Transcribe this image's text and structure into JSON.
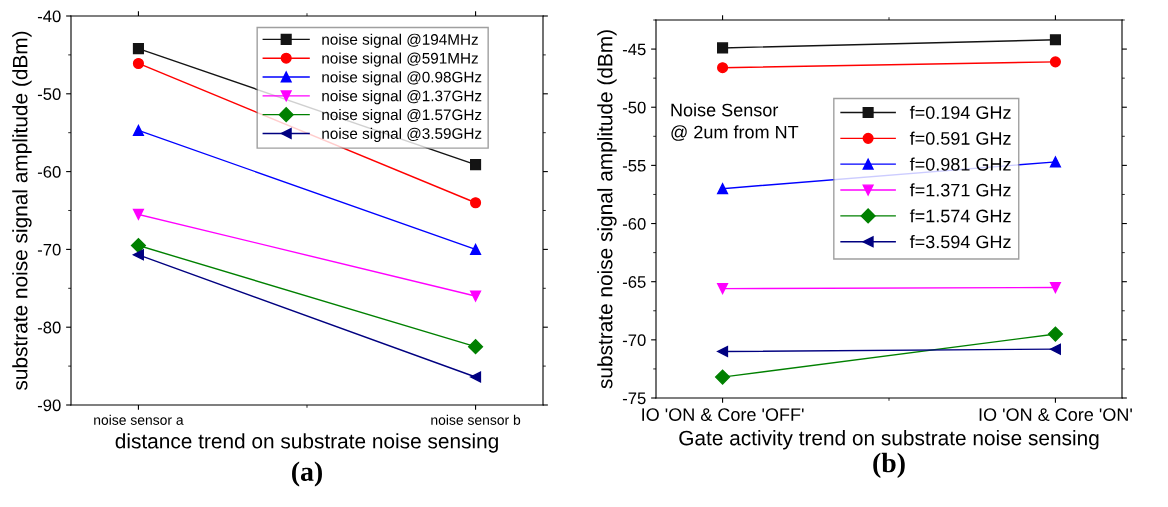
{
  "chart_data": [
    {
      "type": "line",
      "xlabel": "distance trend on substrate noise sensing",
      "ylabel": "substrate noise signal amplitude (dBm)",
      "categories": [
        "noise sensor a",
        "noise sensor b"
      ],
      "ylim": [
        -90,
        -40
      ],
      "yticks": [
        -90,
        -80,
        -70,
        -60,
        -50,
        -40
      ],
      "legend": "top right",
      "annotations": [
        "(a)"
      ],
      "series": [
        {
          "name": "noise signal @194MHz",
          "color": "#141414",
          "marker": "square",
          "values": [
            -44.2,
            -59.1
          ]
        },
        {
          "name": "noise signal @591MHz",
          "color": "#ff0000",
          "marker": "circle",
          "values": [
            -46.1,
            -64.0
          ]
        },
        {
          "name": "noise signal @0.98GHz",
          "color": "#0000ff",
          "marker": "triangle",
          "values": [
            -54.7,
            -70.0
          ]
        },
        {
          "name": "noise signal @1.37GHz",
          "color": "#ff00ff",
          "marker": "triangle_down",
          "values": [
            -65.5,
            -76.0
          ]
        },
        {
          "name": "noise signal @1.57GHz",
          "color": "#008000",
          "marker": "diamond",
          "values": [
            -69.5,
            -82.5
          ]
        },
        {
          "name": "noise signal @3.59GHz",
          "color": "#000080",
          "marker": "triangle_left",
          "values": [
            -70.7,
            -86.4
          ]
        }
      ]
    },
    {
      "type": "line",
      "xlabel": "Gate activity trend on substrate noise sensing",
      "ylabel": "substrate noise signal amplitude (dBm)",
      "categories": [
        "IO 'ON & Core 'OFF'",
        "IO 'ON & Core 'ON'"
      ],
      "ylim": [
        -75,
        -42.5
      ],
      "yticks": [
        -75,
        -70,
        -65,
        -60,
        -55,
        -50,
        -45
      ],
      "legend": "center",
      "annotations": [
        "Noise Sensor\n@ 2um from NT",
        "(b)"
      ],
      "series": [
        {
          "name": "f=0.194 GHz",
          "color": "#141414",
          "marker": "square",
          "values": [
            -44.9,
            -44.2
          ]
        },
        {
          "name": "f=0.591 GHz",
          "color": "#ff0000",
          "marker": "circle",
          "values": [
            -46.6,
            -46.1
          ]
        },
        {
          "name": "f=0.981 GHz",
          "color": "#0000ff",
          "marker": "triangle",
          "values": [
            -57.0,
            -54.7
          ]
        },
        {
          "name": "f=1.371 GHz",
          "color": "#ff00ff",
          "marker": "triangle_down",
          "values": [
            -65.6,
            -65.5
          ]
        },
        {
          "name": "f=1.574 GHz",
          "color": "#008000",
          "marker": "diamond",
          "values": [
            -73.2,
            -69.5
          ]
        },
        {
          "name": "f=3.594 GHz",
          "color": "#000080",
          "marker": "triangle_left",
          "values": [
            -71.0,
            -70.8
          ]
        }
      ]
    }
  ]
}
